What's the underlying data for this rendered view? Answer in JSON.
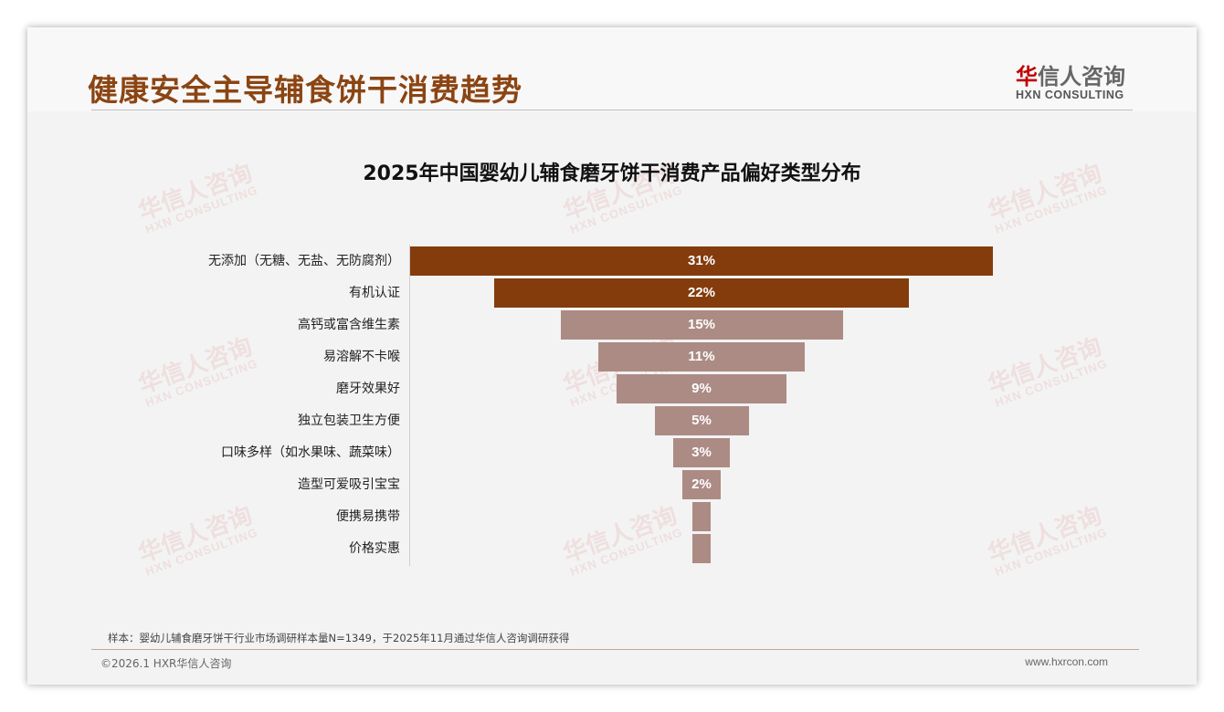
{
  "header": {
    "title": "健康安全主导辅食饼干消费趋势"
  },
  "logo": {
    "cn_accent": "华",
    "cn_rest": "信人咨询",
    "en": "HXN CONSULTING"
  },
  "watermark": {
    "cn": "华信人咨询",
    "en": "HXN CONSULTING"
  },
  "colors": {
    "top": "#843c0c",
    "rest": "#ac8b84",
    "title": "#8b4513"
  },
  "chart_data": {
    "type": "bar",
    "orientation": "horizontal-centered-funnel",
    "title": "2025年中国婴幼儿辅食磨牙饼干消费产品偏好类型分布",
    "categories": [
      "无添加（无糖、无盐、无防腐剂）",
      "有机认证",
      "高钙或富含维生素",
      "易溶解不卡喉",
      "磨牙效果好",
      "独立包装卫生方便",
      "口味多样（如水果味、蔬菜味）",
      "造型可爱吸引宝宝",
      "便携易携带",
      "价格实惠"
    ],
    "values": [
      31,
      22,
      15,
      11,
      9,
      5,
      3,
      2,
      1,
      1
    ],
    "labels": [
      "31%",
      "22%",
      "15%",
      "11%",
      "9%",
      "5%",
      "3%",
      "2%",
      "",
      ""
    ],
    "unit": "%",
    "xlabel": "",
    "ylabel": ""
  },
  "footer": {
    "note": "样本：婴幼儿辅食磨牙饼干行业市场调研样本量N=1349，于2025年11月通过华信人咨询调研获得",
    "copyright": "©2026.1 HXR华信人咨询",
    "url": "www.hxrcon.com"
  }
}
